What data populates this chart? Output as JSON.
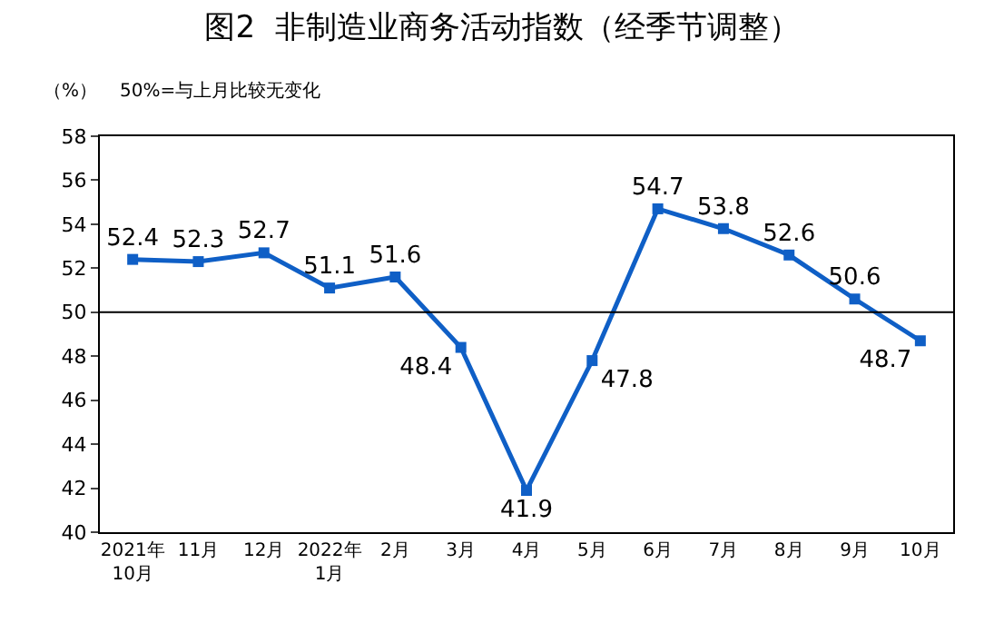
{
  "chart_data": {
    "type": "line",
    "title": "图2  非制造业商务活动指数（经季节调整）",
    "annotations": [
      "（%）",
      "50%=与上月比较无变化"
    ],
    "categories": [
      "2021年\n10月",
      "11月",
      "12月",
      "2022年\n1月",
      "2月",
      "3月",
      "4月",
      "5月",
      "6月",
      "7月",
      "8月",
      "9月",
      "10月"
    ],
    "series": [
      {
        "color": "#0f5fc6",
        "values": [
          52.4,
          52.3,
          52.7,
          51.1,
          51.6,
          48.4,
          41.9,
          47.8,
          54.7,
          53.8,
          52.6,
          50.6,
          48.7
        ]
      }
    ],
    "ylim": [
      40,
      58
    ],
    "yticks": [
      40,
      42,
      44,
      46,
      48,
      50,
      52,
      54,
      56,
      58
    ],
    "ref_lines": [
      {
        "axis": "y",
        "value": 50,
        "color": "#000000"
      }
    ],
    "data_labels": true,
    "marker": "square",
    "line_style": "solid"
  }
}
